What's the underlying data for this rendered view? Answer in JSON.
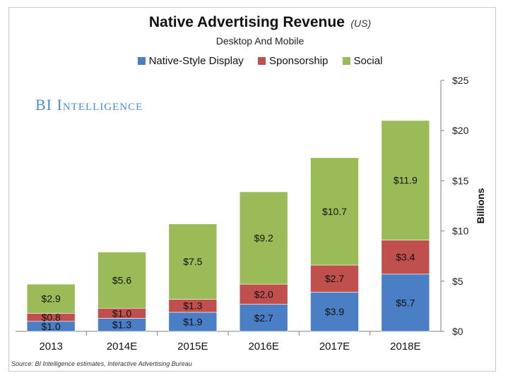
{
  "chart_data": {
    "type": "bar",
    "stacked": true,
    "title": "Native Advertising Revenue",
    "title_suffix": "(US)",
    "subtitle": "Desktop And Mobile",
    "ylabel": "Billions",
    "ylim": [
      0,
      25
    ],
    "yticks": [
      0,
      5,
      10,
      15,
      20,
      25
    ],
    "ytick_labels": [
      "$0",
      "$5",
      "$10",
      "$15",
      "$20",
      "$25"
    ],
    "legend_position": "top",
    "categories": [
      "2013",
      "2014E",
      "2015E",
      "2016E",
      "2017E",
      "2018E"
    ],
    "series": [
      {
        "name": "Native-Style Display",
        "color": "#4a7ec5",
        "values": [
          1.0,
          1.3,
          1.9,
          2.7,
          3.9,
          5.7
        ],
        "labels": [
          "$1.0",
          "$1.3",
          "$1.9",
          "$2.7",
          "$3.9",
          "$5.7"
        ]
      },
      {
        "name": "Sponsorship",
        "color": "#c0504d",
        "values": [
          0.8,
          1.0,
          1.3,
          2.0,
          2.7,
          3.4
        ],
        "labels": [
          "$0.8",
          "$1.0",
          "$1.3",
          "$2.0",
          "$2.7",
          "$3.4"
        ]
      },
      {
        "name": "Social",
        "color": "#9bbb59",
        "values": [
          2.9,
          5.6,
          7.5,
          9.2,
          10.7,
          11.9
        ],
        "labels": [
          "$2.9",
          "$5.6",
          "$7.5",
          "$9.2",
          "$10.7",
          "$11.9"
        ]
      }
    ],
    "brand": "BI Intelligence",
    "source": "Source: BI Intelligence estimates, Interactive Advertising Bureau"
  }
}
